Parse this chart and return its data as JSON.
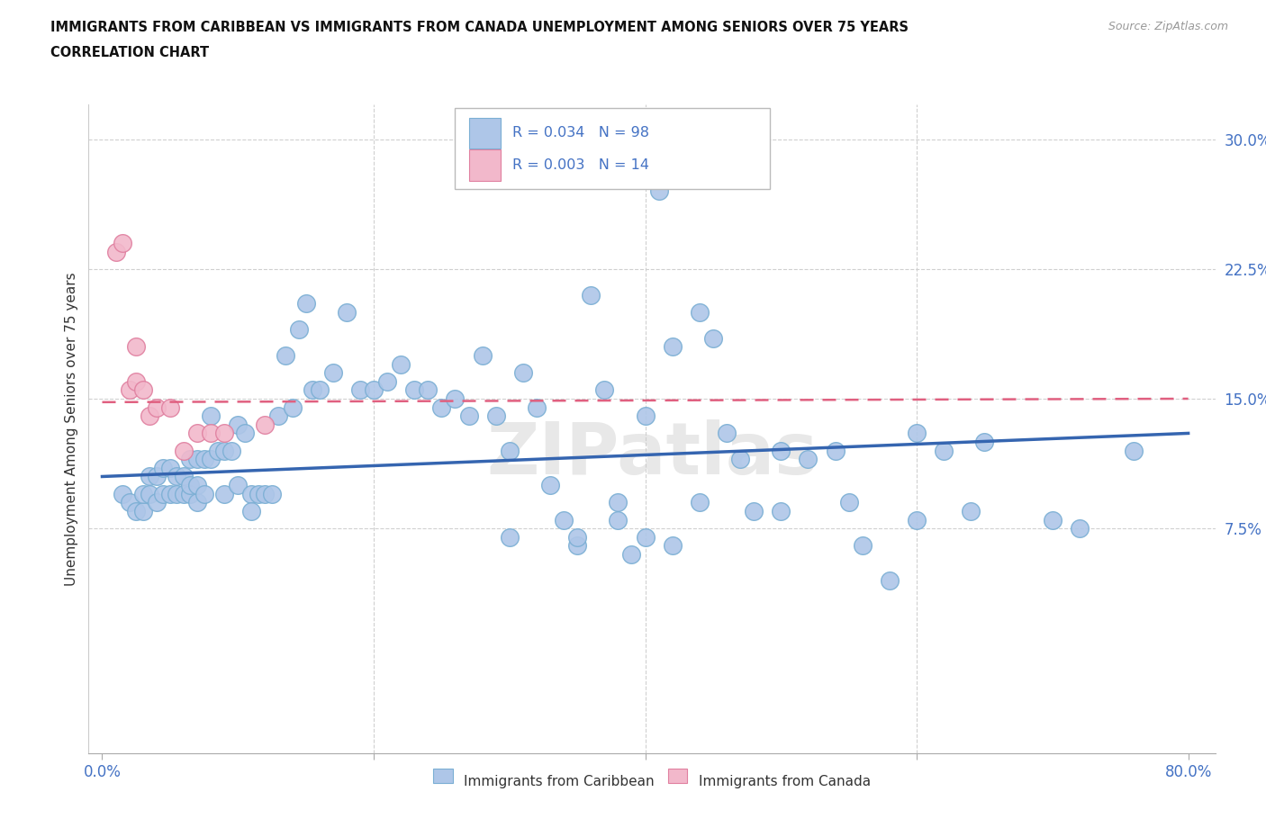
{
  "title_line1": "IMMIGRANTS FROM CARIBBEAN VS IMMIGRANTS FROM CANADA UNEMPLOYMENT AMONG SENIORS OVER 75 YEARS",
  "title_line2": "CORRELATION CHART",
  "source_text": "Source: ZipAtlas.com",
  "ylabel": "Unemployment Among Seniors over 75 years",
  "xlim": [
    -0.01,
    0.82
  ],
  "ylim": [
    -0.055,
    0.32
  ],
  "yticks": [
    0.075,
    0.15,
    0.225,
    0.3
  ],
  "ytick_labels": [
    "7.5%",
    "15.0%",
    "22.5%",
    "30.0%"
  ],
  "xtick_positions": [
    0.0,
    0.2,
    0.4,
    0.6,
    0.8
  ],
  "xtick_labels": [
    "0.0%",
    "",
    "",
    "",
    "80.0%"
  ],
  "blue_color": "#aec6e8",
  "blue_edge": "#7bafd4",
  "pink_color": "#f2b8cb",
  "pink_edge": "#e080a0",
  "red_line_color": "#e06080",
  "blue_line_color": "#3565b0",
  "watermark": "ZIPatlas",
  "grid_color": "#d0d0d0",
  "blue_trend_x0": 0.0,
  "blue_trend_y0": 0.105,
  "blue_trend_x1": 0.8,
  "blue_trend_y1": 0.13,
  "pink_trend_x0": 0.0,
  "pink_trend_y0": 0.148,
  "pink_trend_x1": 0.8,
  "pink_trend_y1": 0.15,
  "blue_scatter_x": [
    0.015,
    0.02,
    0.025,
    0.03,
    0.03,
    0.035,
    0.035,
    0.04,
    0.04,
    0.045,
    0.045,
    0.05,
    0.05,
    0.055,
    0.055,
    0.06,
    0.06,
    0.065,
    0.065,
    0.065,
    0.07,
    0.07,
    0.07,
    0.075,
    0.075,
    0.08,
    0.08,
    0.085,
    0.09,
    0.09,
    0.095,
    0.1,
    0.1,
    0.105,
    0.11,
    0.11,
    0.115,
    0.12,
    0.125,
    0.13,
    0.135,
    0.14,
    0.145,
    0.15,
    0.155,
    0.16,
    0.17,
    0.18,
    0.19,
    0.2,
    0.21,
    0.22,
    0.23,
    0.24,
    0.25,
    0.26,
    0.27,
    0.28,
    0.29,
    0.3,
    0.31,
    0.32,
    0.33,
    0.34,
    0.35,
    0.36,
    0.37,
    0.38,
    0.39,
    0.4,
    0.41,
    0.42,
    0.44,
    0.45,
    0.46,
    0.47,
    0.48,
    0.5,
    0.52,
    0.54,
    0.56,
    0.58,
    0.6,
    0.62,
    0.64,
    0.7,
    0.72,
    0.76,
    0.3,
    0.35,
    0.38,
    0.4,
    0.42,
    0.44,
    0.5,
    0.55,
    0.6,
    0.65
  ],
  "blue_scatter_y": [
    0.095,
    0.09,
    0.085,
    0.085,
    0.095,
    0.095,
    0.105,
    0.09,
    0.105,
    0.095,
    0.11,
    0.095,
    0.11,
    0.095,
    0.105,
    0.095,
    0.105,
    0.095,
    0.1,
    0.115,
    0.09,
    0.1,
    0.115,
    0.095,
    0.115,
    0.115,
    0.14,
    0.12,
    0.095,
    0.12,
    0.12,
    0.1,
    0.135,
    0.13,
    0.095,
    0.085,
    0.095,
    0.095,
    0.095,
    0.14,
    0.175,
    0.145,
    0.19,
    0.205,
    0.155,
    0.155,
    0.165,
    0.2,
    0.155,
    0.155,
    0.16,
    0.17,
    0.155,
    0.155,
    0.145,
    0.15,
    0.14,
    0.175,
    0.14,
    0.12,
    0.165,
    0.145,
    0.1,
    0.08,
    0.065,
    0.21,
    0.155,
    0.09,
    0.06,
    0.14,
    0.27,
    0.18,
    0.2,
    0.185,
    0.13,
    0.115,
    0.085,
    0.12,
    0.115,
    0.12,
    0.065,
    0.045,
    0.08,
    0.12,
    0.085,
    0.08,
    0.075,
    0.12,
    0.07,
    0.07,
    0.08,
    0.07,
    0.065,
    0.09,
    0.085,
    0.09,
    0.13,
    0.125
  ],
  "pink_scatter_x": [
    0.01,
    0.015,
    0.02,
    0.025,
    0.025,
    0.03,
    0.035,
    0.04,
    0.05,
    0.06,
    0.07,
    0.08,
    0.09,
    0.12
  ],
  "pink_scatter_y": [
    0.235,
    0.24,
    0.155,
    0.16,
    0.18,
    0.155,
    0.14,
    0.145,
    0.145,
    0.12,
    0.13,
    0.13,
    0.13,
    0.135
  ]
}
